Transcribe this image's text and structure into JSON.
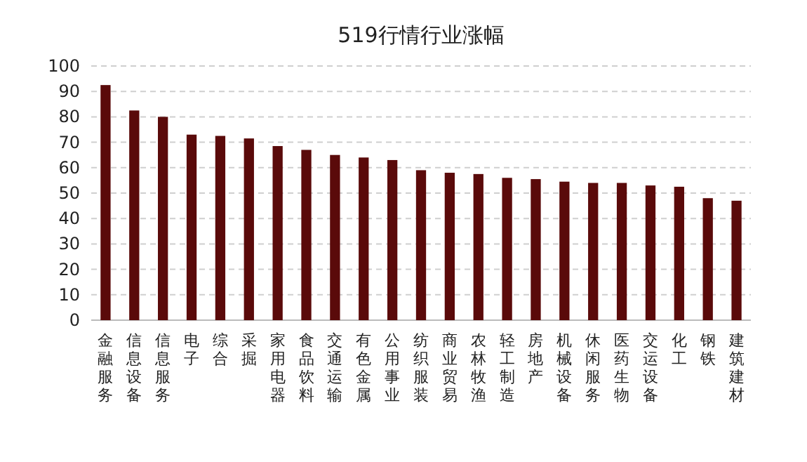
{
  "chart_data": {
    "type": "bar",
    "title": "519行情行业涨幅",
    "categories": [
      "金融服务",
      "信息设备",
      "信息服务",
      "电子",
      "综合",
      "采掘",
      "家用电器",
      "食品饮料",
      "交通运输",
      "有色金属",
      "公用事业",
      "纺织服装",
      "商业贸易",
      "农林牧渔",
      "轻工制造",
      "房地产",
      "机械设备",
      "休闲服务",
      "医药生物",
      "交运设备",
      "化工",
      "钢铁",
      "建筑建材"
    ],
    "values": [
      92.5,
      82.5,
      80,
      73,
      72.5,
      71.5,
      68.5,
      67,
      65,
      64,
      63,
      59,
      58,
      57.5,
      56,
      55.5,
      54.5,
      54,
      54,
      53,
      52.5,
      48,
      47
    ],
    "color": "#5a0a0a",
    "ylim": [
      0,
      100
    ],
    "yticks": [
      0,
      10,
      20,
      30,
      40,
      50,
      60,
      70,
      80,
      90,
      100
    ],
    "grid": "y"
  }
}
